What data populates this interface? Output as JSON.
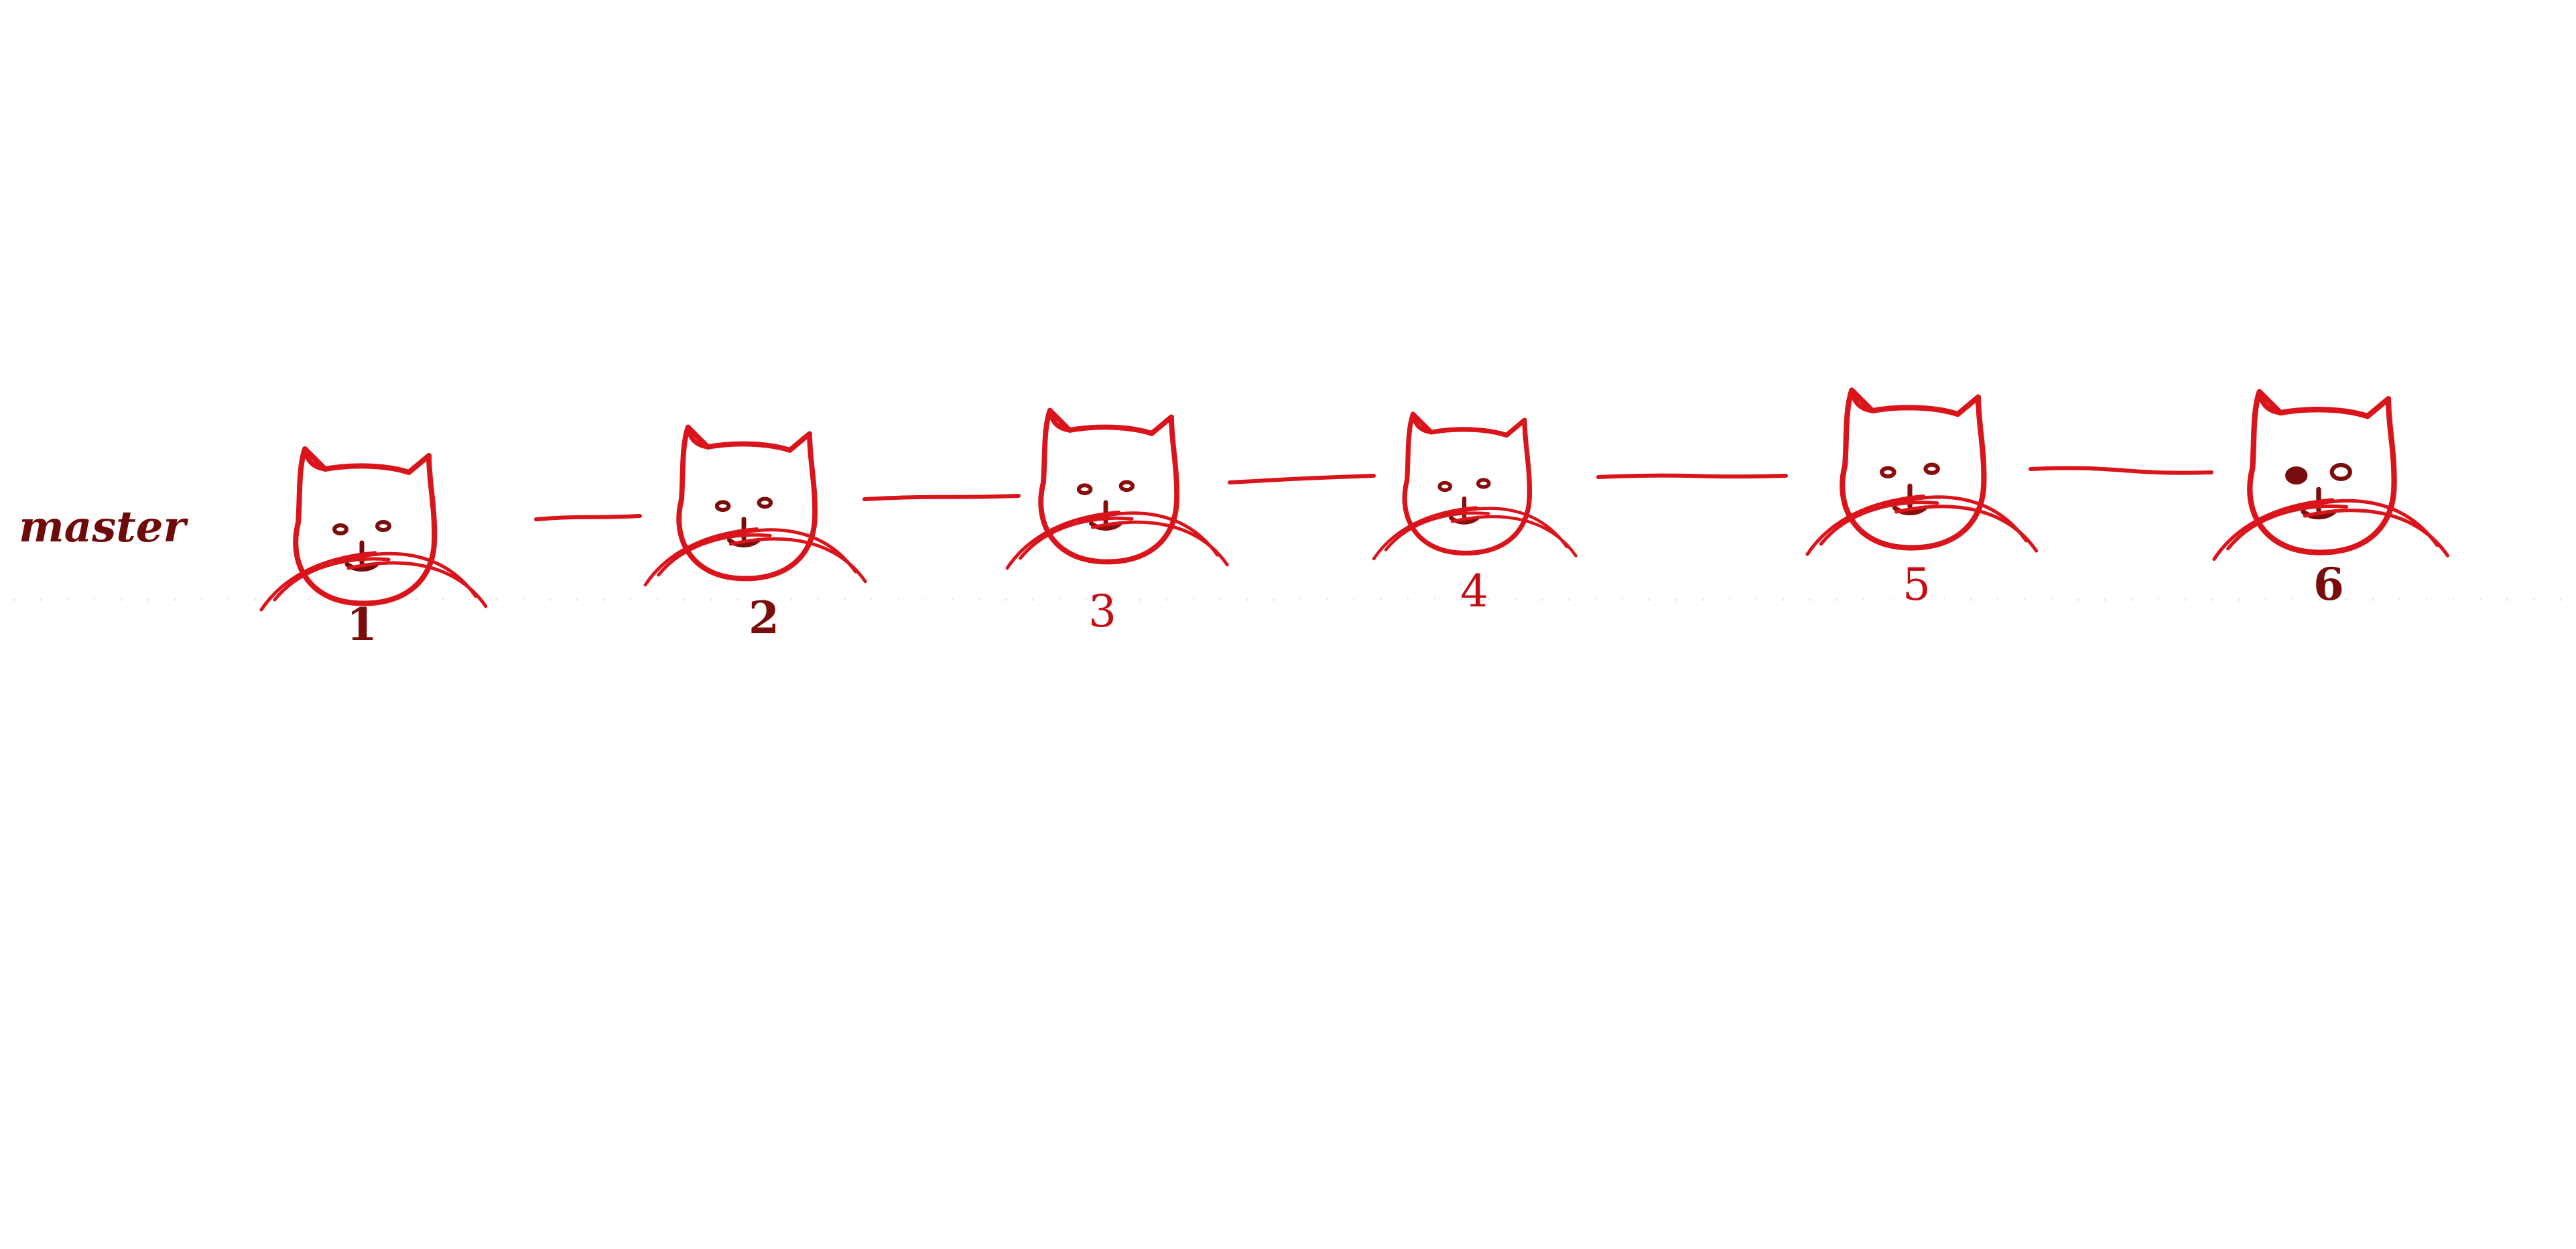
{
  "branch": {
    "label": "master"
  },
  "commits": [
    {
      "number": "1",
      "ink": "dark"
    },
    {
      "number": "2",
      "ink": "dark"
    },
    {
      "number": "3",
      "ink": "red"
    },
    {
      "number": "4",
      "ink": "red"
    },
    {
      "number": "5",
      "ink": "red"
    },
    {
      "number": "6",
      "ink": "dark"
    }
  ],
  "colors": {
    "ink_red": "#d9141b",
    "ink_dark": "#7a0c0c",
    "background": "#ffffff"
  },
  "icons": {
    "commit_icon": "cat-face-icon"
  }
}
